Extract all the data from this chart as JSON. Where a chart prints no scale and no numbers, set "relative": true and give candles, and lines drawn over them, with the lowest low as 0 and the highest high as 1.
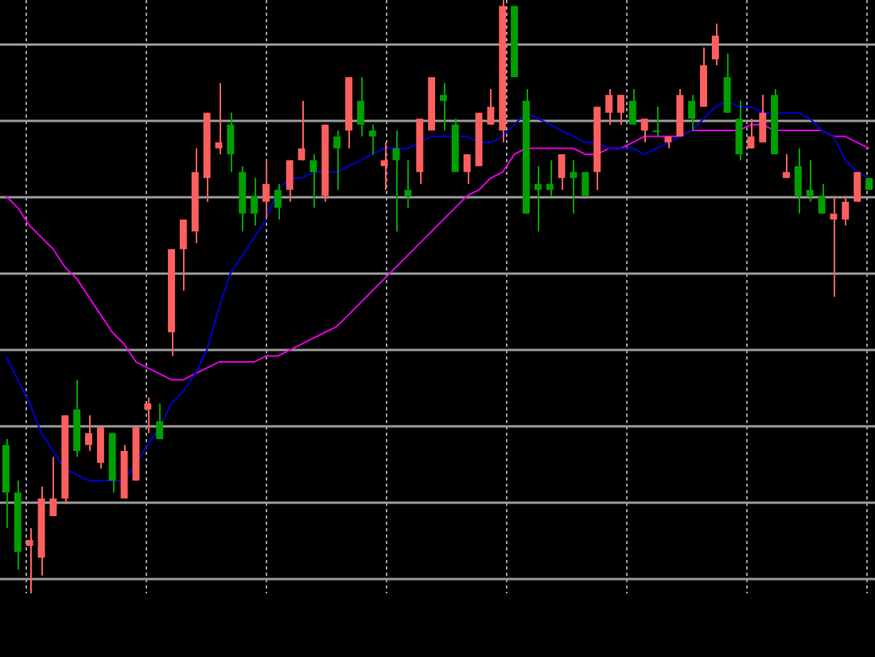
{
  "chart_data": {
    "type": "candlestick",
    "relative": true,
    "grid": true,
    "categories": [
      null,
      null,
      null,
      null,
      null,
      null,
      null,
      null,
      null,
      null,
      null,
      null,
      null,
      null,
      null,
      null,
      null,
      null,
      null,
      null,
      null,
      null,
      null,
      null,
      null,
      null,
      null,
      null,
      null,
      null,
      null,
      null,
      null,
      null,
      null,
      null,
      null,
      null,
      null,
      null,
      null,
      null,
      null,
      null,
      null,
      null,
      null,
      null,
      null,
      null,
      null,
      null,
      null,
      null,
      null,
      null,
      null,
      null,
      null,
      null,
      null,
      null,
      null,
      null,
      null,
      null,
      null,
      null,
      null,
      null,
      null,
      null,
      null,
      null
    ],
    "ohlc": [
      [
        0.25,
        0.26,
        0.11,
        0.17
      ],
      [
        0.17,
        0.19,
        0.04,
        0.07
      ],
      [
        0.08,
        0.11,
        0,
        0.09
      ],
      [
        0.06,
        0.18,
        0.03,
        0.16
      ],
      [
        0.13,
        0.23,
        0.13,
        0.16
      ],
      [
        0.16,
        0.3,
        0.15,
        0.3
      ],
      [
        0.31,
        0.36,
        0.23,
        0.24
      ],
      [
        0.25,
        0.3,
        0.24,
        0.27
      ],
      [
        0.22,
        0.28,
        0.21,
        0.28
      ],
      [
        0.27,
        0.27,
        0.17,
        0.19
      ],
      [
        0.16,
        0.25,
        0.16,
        0.24
      ],
      [
        0.19,
        0.28,
        0.19,
        0.28
      ],
      [
        0.31,
        0.33,
        0.27,
        0.32
      ],
      [
        0.29,
        0.32,
        0.26,
        0.26
      ],
      [
        0.44,
        0.58,
        0.4,
        0.58
      ],
      [
        0.58,
        0.63,
        0.51,
        0.63
      ],
      [
        0.61,
        0.75,
        0.59,
        0.71
      ],
      [
        0.7,
        0.81,
        0.66,
        0.81
      ],
      [
        0.75,
        0.86,
        0.74,
        0.76
      ],
      [
        0.79,
        0.81,
        0.71,
        0.74
      ],
      [
        0.71,
        0.72,
        0.61,
        0.64
      ],
      [
        0.67,
        0.7,
        0.62,
        0.64
      ],
      [
        0.66,
        0.73,
        0.63,
        0.69
      ],
      [
        0.68,
        0.69,
        0.63,
        0.65
      ],
      [
        0.68,
        0.73,
        0.66,
        0.73
      ],
      [
        0.73,
        0.83,
        0.73,
        0.75
      ],
      [
        0.73,
        0.74,
        0.65,
        0.71
      ],
      [
        0.67,
        0.79,
        0.66,
        0.79
      ],
      [
        0.77,
        0.78,
        0.68,
        0.75
      ],
      [
        0.78,
        0.87,
        0.75,
        0.87
      ],
      [
        0.83,
        0.87,
        0.77,
        0.79
      ],
      [
        0.78,
        0.79,
        0.74,
        0.77
      ],
      [
        0.72,
        0.76,
        0.68,
        0.73
      ],
      [
        0.75,
        0.78,
        0.61,
        0.73
      ],
      [
        0.68,
        0.73,
        0.65,
        0.67
      ],
      [
        0.71,
        0.8,
        0.69,
        0.8
      ],
      [
        0.78,
        0.87,
        0.78,
        0.87
      ],
      [
        0.84,
        0.86,
        0.78,
        0.83
      ],
      [
        0.79,
        0.8,
        0.71,
        0.71
      ],
      [
        0.71,
        0.74,
        0.69,
        0.74
      ],
      [
        0.72,
        0.81,
        0.72,
        0.81
      ],
      [
        0.79,
        0.85,
        0.79,
        0.82
      ],
      [
        0.78,
        1,
        0.76,
        0.99
      ],
      [
        0.99,
        0.99,
        0.87,
        0.87
      ],
      [
        0.83,
        0.85,
        0.64,
        0.64
      ],
      [
        0.69,
        0.72,
        0.61,
        0.68
      ],
      [
        0.69,
        0.73,
        0.67,
        0.68
      ],
      [
        0.7,
        0.74,
        0.68,
        0.74
      ],
      [
        0.71,
        0.73,
        0.64,
        0.7
      ],
      [
        0.71,
        0.71,
        0.67,
        0.67
      ],
      [
        0.71,
        0.82,
        0.68,
        0.82
      ],
      [
        0.81,
        0.85,
        0.79,
        0.84
      ],
      [
        0.81,
        0.84,
        0.79,
        0.84
      ],
      [
        0.83,
        0.85,
        0.79,
        0.79
      ],
      [
        0.78,
        0.8,
        0.76,
        0.8
      ],
      [
        0.78,
        0.82,
        0.77,
        0.78
      ],
      [
        0.76,
        0.77,
        0.75,
        0.77
      ],
      [
        0.77,
        0.85,
        0.77,
        0.84
      ],
      [
        0.83,
        0.84,
        0.78,
        0.8
      ],
      [
        0.82,
        0.92,
        0.82,
        0.89
      ],
      [
        0.9,
        0.96,
        0.89,
        0.94
      ],
      [
        0.87,
        0.91,
        0.81,
        0.81
      ],
      [
        0.8,
        0.83,
        0.73,
        0.74
      ],
      [
        0.75,
        0.8,
        0.75,
        0.77
      ],
      [
        0.76,
        0.84,
        0.76,
        0.81
      ],
      [
        0.84,
        0.85,
        0.74,
        0.74
      ],
      [
        0.7,
        0.74,
        0.7,
        0.71
      ],
      [
        0.72,
        0.75,
        0.64,
        0.67
      ],
      [
        0.68,
        0.73,
        0.66,
        0.67
      ],
      [
        0.67,
        0.69,
        0.64,
        0.64
      ],
      [
        0.63,
        0.67,
        0.5,
        0.64
      ],
      [
        0.63,
        0.67,
        0.62,
        0.66
      ],
      [
        0.66,
        0.71,
        0.66,
        0.71
      ],
      [
        0.7,
        0.7,
        0.68,
        0.68
      ]
    ],
    "colors": [
      "#00a000",
      "#00a000",
      "#ff5f5f",
      "#ff5f5f",
      "#ff5f5f",
      "#ff5f5f",
      "#00a000",
      "#ff5f5f",
      "#ff5f5f",
      "#00a000",
      "#ff5f5f",
      "#ff5f5f",
      "#ff5f5f",
      "#00a000",
      "#ff5f5f",
      "#ff5f5f",
      "#ff5f5f",
      "#ff5f5f",
      "#ff5f5f",
      "#00a000",
      "#00a000",
      "#00a000",
      "#ff5f5f",
      "#00a000",
      "#ff5f5f",
      "#ff5f5f",
      "#00a000",
      "#ff5f5f",
      "#00a000",
      "#ff5f5f",
      "#00a000",
      "#00a000",
      "#ff5f5f",
      "#00a000",
      "#00a000",
      "#ff5f5f",
      "#ff5f5f",
      "#00a000",
      "#00a000",
      "#ff5f5f",
      "#ff5f5f",
      "#ff5f5f",
      "#ff5f5f",
      "#00a000",
      "#00a000",
      "#00a000",
      "#00a000",
      "#ff5f5f",
      "#00a000",
      "#00a000",
      "#ff5f5f",
      "#ff5f5f",
      "#ff5f5f",
      "#00a000",
      "#ff5f5f",
      "#00a000",
      "#ff5f5f",
      "#ff5f5f",
      "#00a000",
      "#ff5f5f",
      "#ff5f5f",
      "#00a000",
      "#00a000",
      "#ff5f5f",
      "#ff5f5f",
      "#00a000",
      "#ff5f5f",
      "#00a000",
      "#00a000",
      "#00a000",
      "#ff5f5f",
      "#ff5f5f",
      "#ff5f5f",
      "#00a000"
    ],
    "series": [
      {
        "type": "line",
        "color": "#0000d0",
        "values": [
          0.4,
          0.36,
          0.32,
          0.27,
          0.24,
          0.21,
          0.2,
          0.19,
          0.19,
          0.19,
          0.19,
          0.22,
          0.25,
          0.28,
          0.32,
          0.34,
          0.37,
          0.41,
          0.48,
          0.54,
          0.57,
          0.6,
          0.63,
          0.68,
          0.7,
          0.7,
          0.71,
          0.71,
          0.71,
          0.72,
          0.73,
          0.74,
          0.75,
          0.75,
          0.75,
          0.76,
          0.77,
          0.77,
          0.77,
          0.77,
          0.76,
          0.76,
          0.77,
          0.79,
          0.81,
          0.8,
          0.79,
          0.78,
          0.77,
          0.76,
          0.76,
          0.75,
          0.75,
          0.75,
          0.74,
          0.75,
          0.76,
          0.77,
          0.78,
          0.8,
          0.82,
          0.83,
          0.82,
          0.82,
          0.81,
          0.81,
          0.81,
          0.81,
          0.8,
          0.78,
          0.77,
          0.73,
          0.71,
          0.7
        ]
      },
      {
        "type": "line",
        "color": "#e000e0",
        "values": [
          0.67,
          0.65,
          0.62,
          0.6,
          0.58,
          0.55,
          0.53,
          0.5,
          0.47,
          0.44,
          0.42,
          0.39,
          0.38,
          0.37,
          0.36,
          0.36,
          0.37,
          0.38,
          0.39,
          0.39,
          0.39,
          0.39,
          0.4,
          0.4,
          0.41,
          0.42,
          0.43,
          0.44,
          0.45,
          0.47,
          0.49,
          0.51,
          0.53,
          0.55,
          0.57,
          0.59,
          0.61,
          0.63,
          0.65,
          0.67,
          0.68,
          0.7,
          0.71,
          0.74,
          0.75,
          0.75,
          0.75,
          0.75,
          0.75,
          0.74,
          0.74,
          0.75,
          0.75,
          0.76,
          0.77,
          0.77,
          0.77,
          0.77,
          0.78,
          0.78,
          0.78,
          0.78,
          0.78,
          0.79,
          0.79,
          0.78,
          0.78,
          0.78,
          0.78,
          0.78,
          0.77,
          0.77,
          0.76,
          0.75
        ]
      }
    ]
  }
}
